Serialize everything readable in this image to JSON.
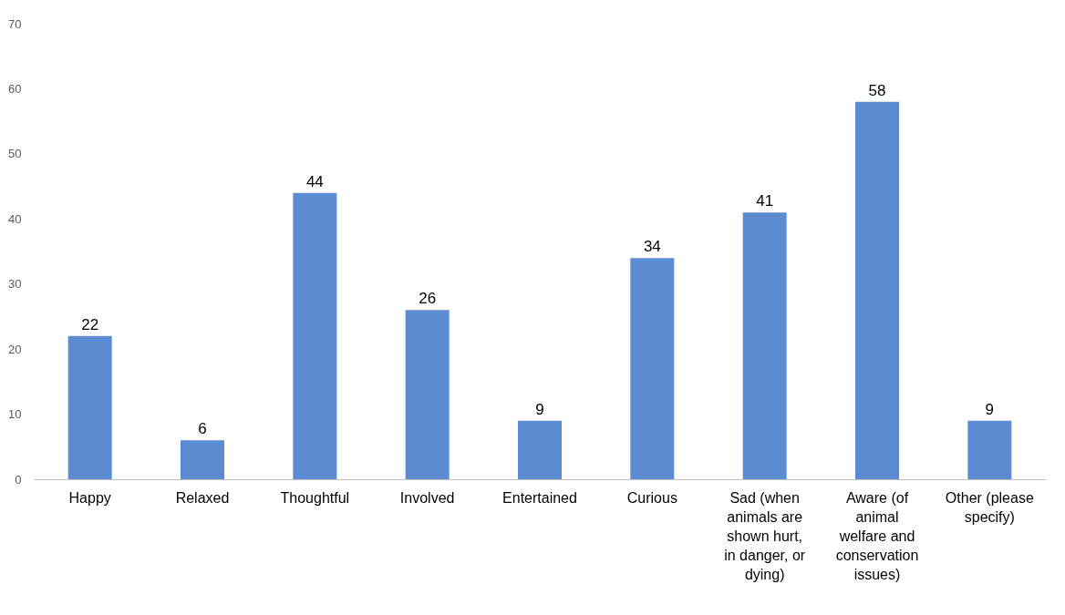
{
  "chart_data": {
    "type": "bar",
    "categories": [
      "Happy",
      "Relaxed",
      "Thoughtful",
      "Involved",
      "Entertained",
      "Curious",
      "Sad (when animals are shown hurt, in danger, or dying)",
      "Aware (of animal welfare and conservation issues)",
      "Other (please specify)"
    ],
    "values": [
      22,
      6,
      44,
      26,
      9,
      34,
      41,
      58,
      9
    ],
    "color": "#5b8bd0",
    "ylim": [
      0,
      70
    ],
    "yticks": [
      0,
      10,
      20,
      30,
      40,
      50,
      60,
      70
    ],
    "grid": false,
    "data_labels": true
  }
}
